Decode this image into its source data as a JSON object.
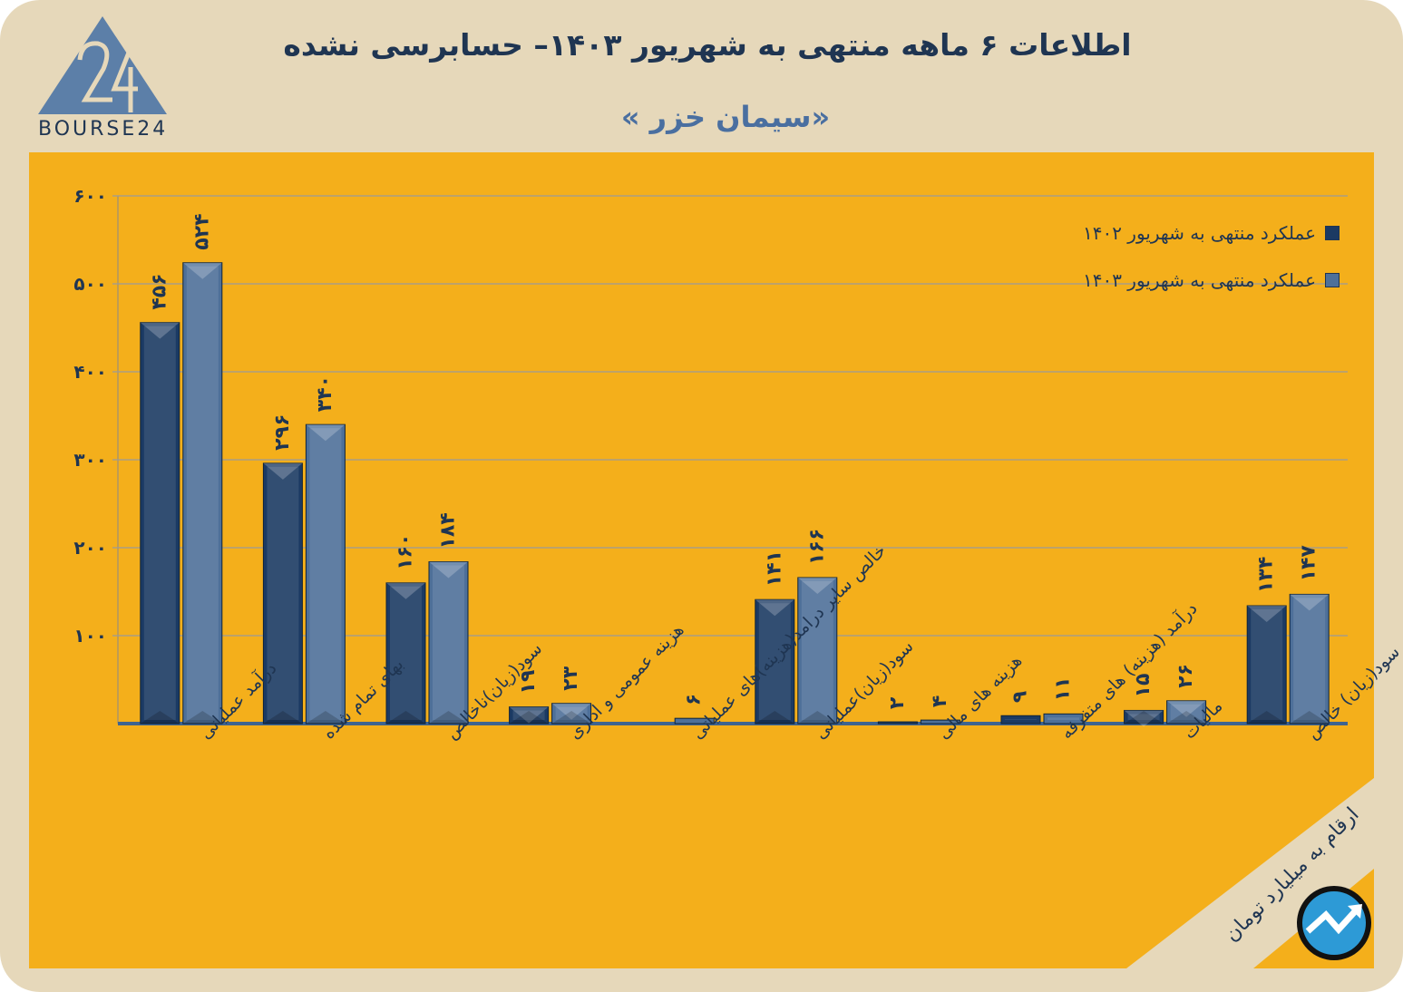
{
  "title": "اطلاعات ۶ ماهه منتهی به شهریور ۱۴۰۳– حسابرسی نشده",
  "subtitle": "«سیمان خزر »",
  "logo_text": "BOURSE24",
  "unit_note": "ارقام به میلیارد تومان",
  "colors": {
    "background": "#e6d8ba",
    "panel": "#f4af1b",
    "series_1402": "#1b3a63",
    "series_1403": "#4e7099",
    "text": "#1f3552"
  },
  "chart_data": {
    "type": "bar",
    "ylim": [
      0,
      600
    ],
    "yticks": [
      100,
      200,
      300,
      400,
      500,
      600
    ],
    "ytick_labels": [
      "۱۰۰",
      "۲۰۰",
      "۳۰۰",
      "۴۰۰",
      "۵۰۰",
      "۶۰۰"
    ],
    "grid": true,
    "legend_position": "top-right",
    "categories": [
      "درآمد عملیاتی",
      "بهای تمام شده",
      "سود(زیان)ناخالص",
      "هزینه عمومی و اداری",
      "خالص سایر درامد(هزینه)های عملیاتی",
      "سود(زیان)عملیاتی",
      "هزینه های مالی",
      "درآمد (هزینه) های متفرقه",
      "مالیات",
      "سود(زیان) خالص"
    ],
    "series": [
      {
        "name": "عملکرد منتهی به شهریور ۱۴۰۲",
        "values": [
          456,
          296,
          160,
          19,
          0,
          141,
          2,
          9,
          15,
          134
        ],
        "labels": [
          "۴۵۶",
          "۲۹۶",
          "۱۶۰",
          "۱۹",
          "",
          "۱۴۱",
          "۲",
          "۹",
          "۱۵",
          "۱۳۴"
        ]
      },
      {
        "name": "عملکرد منتهی به شهریور ۱۴۰۳",
        "values": [
          524,
          340,
          184,
          23,
          6,
          166,
          4,
          11,
          26,
          147
        ],
        "labels": [
          "۵۲۴",
          "۳۴۰",
          "۱۸۴",
          "۲۳",
          "۶",
          "۱۶۶",
          "۴",
          "۱۱",
          "۲۶",
          "۱۴۷"
        ]
      }
    ]
  }
}
